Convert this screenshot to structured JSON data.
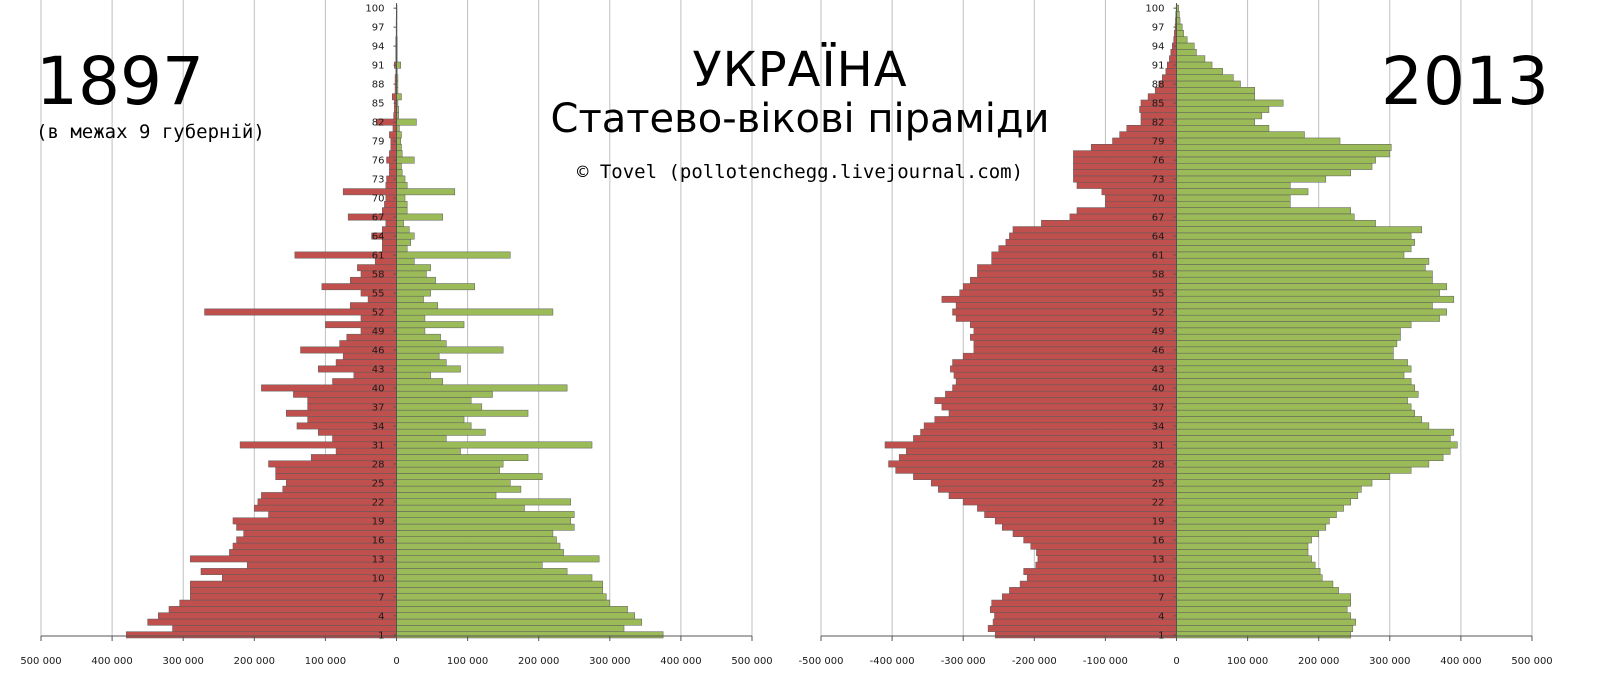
{
  "left_panel": {
    "year": "1897",
    "subtitle": "(в межах 9 губерній)"
  },
  "right_panel": {
    "year": "2013"
  },
  "title": "УКРАЇНА",
  "subtitle": "Статево-вікові піраміди",
  "credit": "© Tovel (pollotenchegg.livejournal.com)",
  "colors": {
    "male": "#c0504d",
    "female": "#9bbb59",
    "grid": "#bfbfbf",
    "bar_border": "#5a5a5a"
  },
  "chart_data": [
    {
      "type": "bar",
      "orientation": "horizontal",
      "subtype": "population-pyramid",
      "title": "1897",
      "y_tick_labels": [
        "1",
        "4",
        "7",
        "10",
        "13",
        "16",
        "19",
        "22",
        "25",
        "28",
        "31",
        "34",
        "37",
        "40",
        "43",
        "46",
        "49",
        "52",
        "55",
        "58",
        "61",
        "64",
        "67",
        "70",
        "73",
        "76",
        "79",
        "82",
        "85",
        "88",
        "91",
        "94",
        "97",
        "100"
      ],
      "x_tick_labels": [
        "500 000",
        "400 000",
        "300 000",
        "200 000",
        "100 000",
        "0",
        "100 000",
        "200 000",
        "300 000",
        "400 000",
        "500 000"
      ],
      "xlim": [
        -500000,
        500000
      ],
      "ages": [
        1,
        2,
        3,
        4,
        5,
        6,
        7,
        8,
        9,
        10,
        11,
        12,
        13,
        14,
        15,
        16,
        17,
        18,
        19,
        20,
        21,
        22,
        23,
        24,
        25,
        26,
        27,
        28,
        29,
        30,
        31,
        32,
        33,
        34,
        35,
        36,
        37,
        38,
        39,
        40,
        41,
        42,
        43,
        44,
        45,
        46,
        47,
        48,
        49,
        50,
        51,
        52,
        53,
        54,
        55,
        56,
        57,
        58,
        59,
        60,
        61,
        62,
        63,
        64,
        65,
        66,
        67,
        68,
        69,
        70,
        71,
        72,
        73,
        74,
        75,
        76,
        77,
        78,
        79,
        80,
        81,
        82,
        83,
        84,
        85,
        86,
        87,
        88,
        89,
        90,
        91,
        92,
        93,
        94,
        95,
        96,
        97,
        98,
        99,
        100
      ],
      "series": [
        {
          "name": "male",
          "values": [
            380000,
            315000,
            350000,
            335000,
            320000,
            305000,
            290000,
            290000,
            290000,
            245000,
            275000,
            210000,
            290000,
            235000,
            230000,
            225000,
            215000,
            225000,
            230000,
            180000,
            200000,
            195000,
            190000,
            160000,
            155000,
            170000,
            170000,
            180000,
            120000,
            85000,
            220000,
            90000,
            110000,
            140000,
            125000,
            155000,
            125000,
            125000,
            145000,
            190000,
            90000,
            60000,
            110000,
            85000,
            75000,
            135000,
            80000,
            70000,
            50000,
            100000,
            50000,
            270000,
            65000,
            40000,
            50000,
            105000,
            65000,
            50000,
            55000,
            30000,
            143000,
            20000,
            20000,
            35000,
            20000,
            15000,
            68000,
            20000,
            17000,
            15000,
            75000,
            15000,
            14000,
            10000,
            10000,
            14000,
            10000,
            8000,
            8000,
            10000,
            5000,
            28000,
            4000,
            3000,
            3000,
            6000,
            2000,
            2000,
            2000,
            1000,
            3000,
            1000,
            1000,
            1000,
            1000,
            500,
            500,
            500,
            300,
            300
          ]
        },
        {
          "name": "female",
          "values": [
            375000,
            320000,
            345000,
            335000,
            325000,
            300000,
            295000,
            290000,
            290000,
            275000,
            240000,
            205000,
            285000,
            235000,
            230000,
            225000,
            220000,
            250000,
            245000,
            250000,
            180000,
            245000,
            140000,
            175000,
            160000,
            205000,
            145000,
            150000,
            185000,
            90000,
            275000,
            70000,
            125000,
            105000,
            95000,
            185000,
            120000,
            105000,
            135000,
            240000,
            65000,
            48000,
            90000,
            70000,
            60000,
            150000,
            70000,
            62000,
            40000,
            95000,
            40000,
            220000,
            58000,
            38000,
            48000,
            110000,
            55000,
            42000,
            48000,
            25000,
            160000,
            15000,
            20000,
            25000,
            18000,
            10000,
            65000,
            15000,
            15000,
            12000,
            82000,
            15000,
            12000,
            8000,
            7000,
            25000,
            8000,
            7000,
            6000,
            7000,
            4000,
            28000,
            3000,
            3000,
            2000,
            7000,
            2000,
            2000,
            2000,
            1000,
            6000,
            1000,
            1000,
            1000,
            1000,
            500,
            500,
            500,
            300,
            200
          ]
        }
      ]
    },
    {
      "type": "bar",
      "orientation": "horizontal",
      "subtype": "population-pyramid",
      "title": "2013",
      "y_tick_labels": [
        "1",
        "4",
        "7",
        "10",
        "13",
        "16",
        "19",
        "22",
        "25",
        "28",
        "31",
        "34",
        "37",
        "40",
        "43",
        "46",
        "49",
        "52",
        "55",
        "58",
        "61",
        "64",
        "67",
        "70",
        "73",
        "76",
        "79",
        "82",
        "85",
        "88",
        "91",
        "94",
        "97",
        "100"
      ],
      "x_tick_labels": [
        "-500 000",
        "-400 000",
        "-300 000",
        "-200 000",
        "-100 000",
        "0",
        "100 000",
        "200 000",
        "300 000",
        "400 000",
        "500 000"
      ],
      "xlim": [
        -500000,
        500000
      ],
      "ages": [
        1,
        2,
        3,
        4,
        5,
        6,
        7,
        8,
        9,
        10,
        11,
        12,
        13,
        14,
        15,
        16,
        17,
        18,
        19,
        20,
        21,
        22,
        23,
        24,
        25,
        26,
        27,
        28,
        29,
        30,
        31,
        32,
        33,
        34,
        35,
        36,
        37,
        38,
        39,
        40,
        41,
        42,
        43,
        44,
        45,
        46,
        47,
        48,
        49,
        50,
        51,
        52,
        53,
        54,
        55,
        56,
        57,
        58,
        59,
        60,
        61,
        62,
        63,
        64,
        65,
        66,
        67,
        68,
        69,
        70,
        71,
        72,
        73,
        74,
        75,
        76,
        77,
        78,
        79,
        80,
        81,
        82,
        83,
        84,
        85,
        86,
        87,
        88,
        89,
        90,
        91,
        92,
        93,
        94,
        95,
        96,
        97,
        98,
        99,
        100
      ],
      "series": [
        {
          "name": "male",
          "values": [
            -255000,
            -265000,
            -258000,
            -256000,
            -262000,
            -260000,
            -245000,
            -235000,
            -220000,
            -210000,
            -215000,
            -198000,
            -195000,
            -197000,
            -205000,
            -215000,
            -230000,
            -245000,
            -255000,
            -270000,
            -280000,
            -300000,
            -320000,
            -335000,
            -345000,
            -370000,
            -395000,
            -405000,
            -390000,
            -380000,
            -410000,
            -370000,
            -360000,
            -355000,
            -340000,
            -320000,
            -330000,
            -340000,
            -325000,
            -315000,
            -310000,
            -313000,
            -318000,
            -315000,
            -300000,
            -285000,
            -285000,
            -290000,
            -285000,
            -290000,
            -310000,
            -315000,
            -310000,
            -330000,
            -305000,
            -300000,
            -290000,
            -280000,
            -280000,
            -260000,
            -260000,
            -250000,
            -240000,
            -235000,
            -230000,
            -190000,
            -150000,
            -140000,
            -100000,
            -100000,
            -105000,
            -140000,
            -145000,
            -145000,
            -145000,
            -145000,
            -145000,
            -120000,
            -90000,
            -80000,
            -70000,
            -50000,
            -50000,
            -52000,
            -50000,
            -40000,
            -30000,
            -25000,
            -20000,
            -15000,
            -13000,
            -10000,
            -8000,
            -6000,
            -4000,
            -3000,
            -2000,
            -1500,
            -1000,
            -500
          ]
        },
        {
          "name": "female",
          "values": [
            245000,
            248000,
            252000,
            245000,
            240000,
            245000,
            245000,
            228000,
            220000,
            205000,
            202000,
            195000,
            190000,
            185000,
            185000,
            190000,
            200000,
            210000,
            215000,
            225000,
            235000,
            245000,
            255000,
            260000,
            275000,
            300000,
            330000,
            355000,
            375000,
            385000,
            395000,
            385000,
            390000,
            355000,
            345000,
            335000,
            330000,
            325000,
            340000,
            335000,
            330000,
            320000,
            330000,
            325000,
            305000,
            305000,
            310000,
            315000,
            315000,
            330000,
            370000,
            380000,
            360000,
            390000,
            370000,
            380000,
            360000,
            360000,
            350000,
            355000,
            320000,
            330000,
            335000,
            330000,
            345000,
            280000,
            250000,
            245000,
            160000,
            160000,
            185000,
            160000,
            210000,
            245000,
            275000,
            280000,
            300000,
            302000,
            230000,
            180000,
            130000,
            110000,
            120000,
            130000,
            150000,
            110000,
            110000,
            90000,
            80000,
            65000,
            50000,
            40000,
            28000,
            25000,
            15000,
            10000,
            8000,
            5000,
            4000,
            3000
          ]
        }
      ]
    }
  ]
}
